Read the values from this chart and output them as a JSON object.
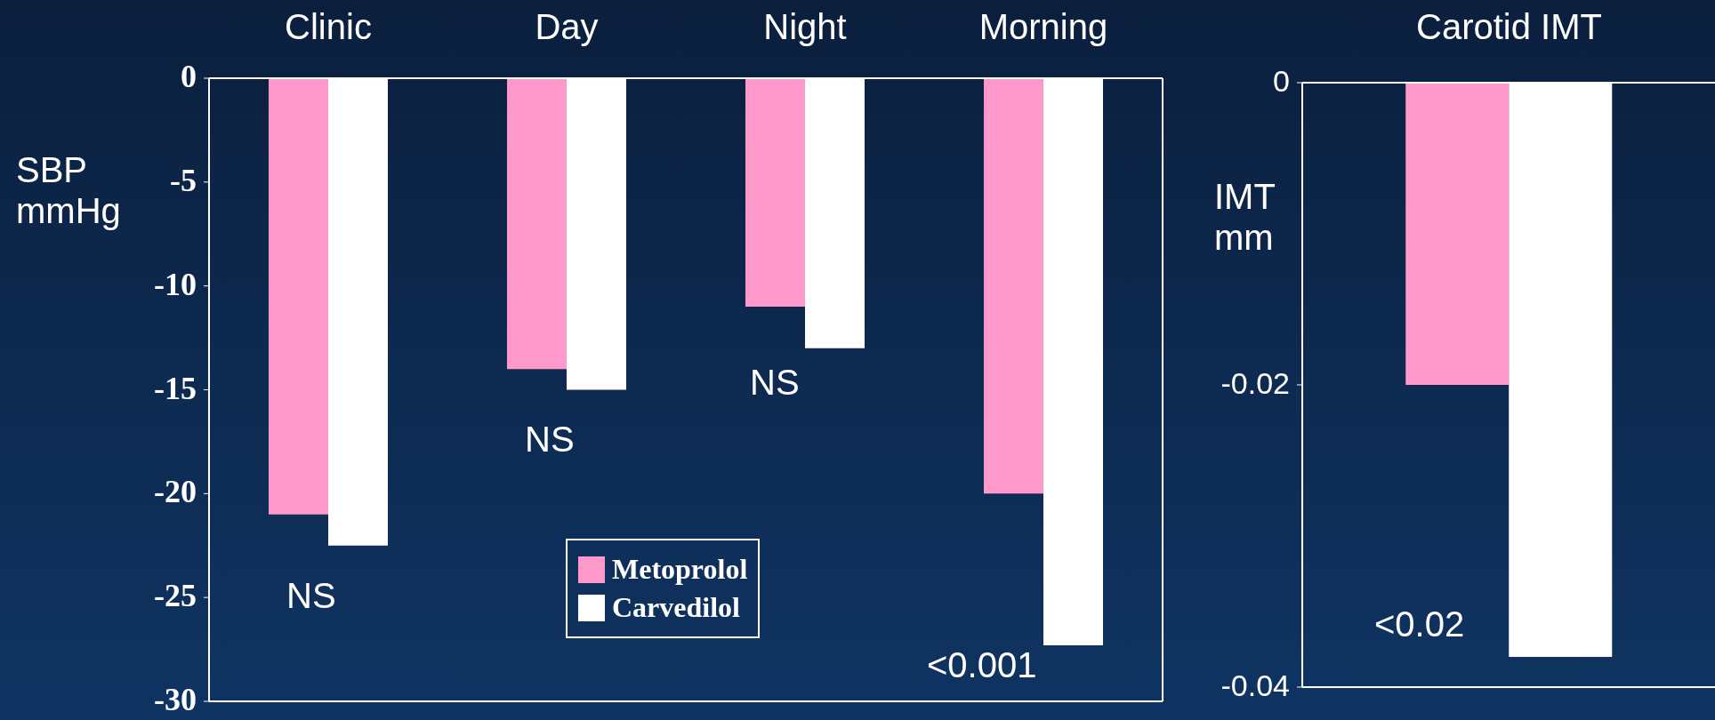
{
  "chart_data": [
    {
      "type": "bar",
      "categories": [
        "Clinic",
        "Day",
        "Night",
        "Morning"
      ],
      "ylabel": "SBP mmHg",
      "ylim": [
        -30,
        0
      ],
      "yticks": [
        0,
        -5,
        -10,
        -15,
        -20,
        -25,
        -30
      ],
      "legend": "bottom",
      "series": [
        {
          "name": "Metoprolol",
          "color": "#ff99cc",
          "values": [
            -21,
            -14,
            -11,
            -20
          ]
        },
        {
          "name": "Carvedilol",
          "color": "#ffffff",
          "values": [
            -22.5,
            -15,
            -13,
            -27.3
          ]
        }
      ],
      "annotations": [
        "NS",
        "NS",
        "NS",
        "<0.001"
      ]
    },
    {
      "type": "bar",
      "categories": [
        "Carotid IMT"
      ],
      "ylabel": "IMT mm",
      "ylim": [
        -0.04,
        0
      ],
      "yticks": [
        0,
        -0.02,
        -0.04
      ],
      "series": [
        {
          "color": "#ff99cc",
          "values": [
            -0.02
          ]
        },
        {
          "color": "#ffffff",
          "values": [
            -0.038
          ]
        }
      ],
      "annotations": [
        "<0.02"
      ]
    }
  ]
}
